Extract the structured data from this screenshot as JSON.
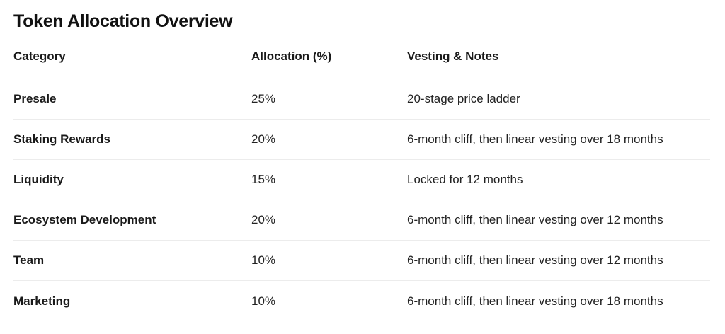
{
  "title": "Token Allocation Overview",
  "table": {
    "headers": [
      "Category",
      "Allocation (%)",
      "Vesting & Notes"
    ],
    "rows": [
      [
        "Presale",
        "25%",
        "20-stage price ladder"
      ],
      [
        "Staking Rewards",
        "20%",
        "6-month cliff, then linear vesting over 18 months"
      ],
      [
        "Liquidity",
        "15%",
        "Locked for 12 months"
      ],
      [
        "Ecosystem Development",
        "20%",
        "6-month cliff, then linear vesting over 12 months"
      ],
      [
        "Team",
        "10%",
        "6-month cliff, then linear vesting over 12 months"
      ],
      [
        "Marketing",
        "10%",
        "6-month cliff, then linear vesting over 18 months"
      ]
    ]
  }
}
